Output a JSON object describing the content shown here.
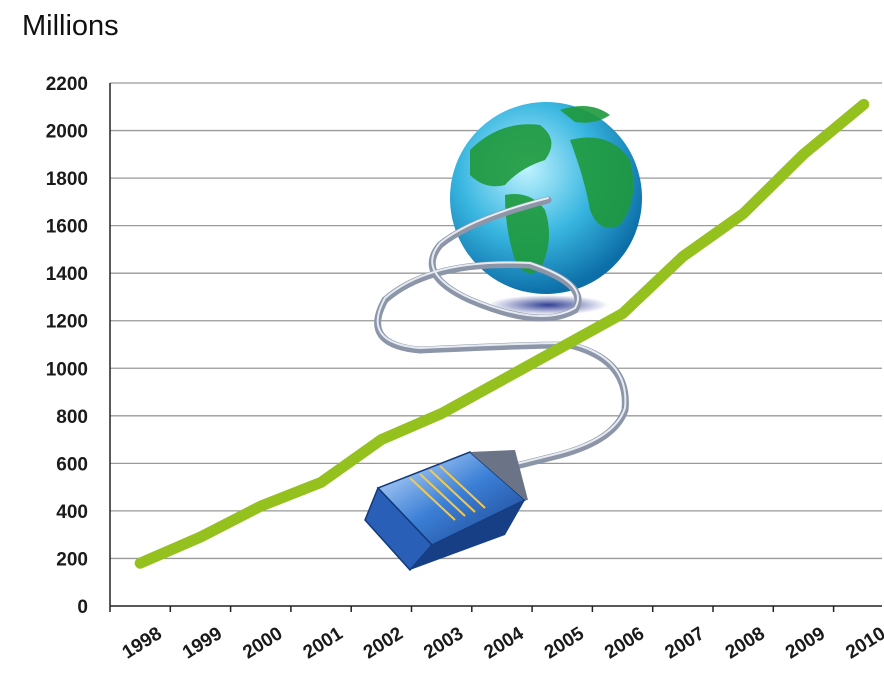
{
  "chart_data": {
    "type": "line",
    "unit_label": "Millions",
    "x": [
      "1998",
      "1999",
      "2000",
      "2001",
      "2002",
      "2003",
      "2004",
      "2005",
      "2006",
      "2007",
      "2008",
      "2009",
      "2010"
    ],
    "series": [
      {
        "values": [
          180,
          290,
          420,
          520,
          700,
          810,
          950,
          1090,
          1230,
          1470,
          1650,
          1900,
          2110
        ]
      }
    ],
    "ylim": [
      0,
      2200
    ],
    "yticks": [
      0,
      200,
      400,
      600,
      800,
      1000,
      1200,
      1400,
      1600,
      1800,
      2000,
      2200
    ],
    "grid": true,
    "line_color": "#95c11f",
    "grid_color": "#999999",
    "illustration": "globe-with-network-cable"
  }
}
